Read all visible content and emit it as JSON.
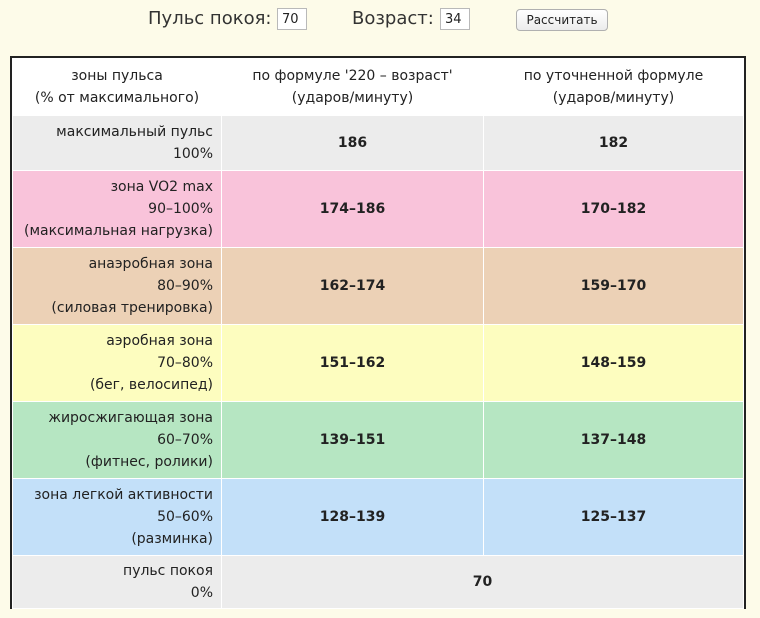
{
  "controls": {
    "rest_pulse_label": "Пульс покоя:",
    "rest_pulse_value": "70",
    "age_label": "Возраст:",
    "age_value": "34",
    "calculate_label": "Рассчитать"
  },
  "table": {
    "header": {
      "zones": [
        "зоны пульса",
        "(% от максимального)"
      ],
      "formula_220": [
        "по формуле '220 – возраст'",
        "(ударов/минуту)"
      ],
      "refined": [
        "по уточненной формуле",
        "(ударов/минуту)"
      ]
    },
    "rows": [
      {
        "zone": [
          "максимальный пульс",
          "100%"
        ],
        "formula_220": "186",
        "refined": "182",
        "color": "#ececec"
      },
      {
        "zone": [
          "зона VO2 max",
          "90–100%",
          "(максимальная нагрузка)"
        ],
        "formula_220": "174–186",
        "refined": "170–182",
        "color": "#f9c3da"
      },
      {
        "zone": [
          "анаэробная зона",
          "80–90%",
          "(силовая тренировка)"
        ],
        "formula_220": "162–174",
        "refined": "159–170",
        "color": "#ecd1b6"
      },
      {
        "zone": [
          "аэробная зона",
          "70–80%",
          "(бег, велосипед)"
        ],
        "formula_220": "151–162",
        "refined": "148–159",
        "color": "#fdfdbf"
      },
      {
        "zone": [
          "жиросжигающая зона",
          "60–70%",
          "(фитнес, ролики)"
        ],
        "formula_220": "139–151",
        "refined": "137–148",
        "color": "#b6e6c2"
      },
      {
        "zone": [
          "зона легкой активности",
          "50–60%",
          "(разминка)"
        ],
        "formula_220": "128–139",
        "refined": "125–137",
        "color": "#c3e0f9"
      },
      {
        "zone": [
          "пульс покоя",
          "0%"
        ],
        "value": "70",
        "color": "#ececec"
      }
    ]
  }
}
